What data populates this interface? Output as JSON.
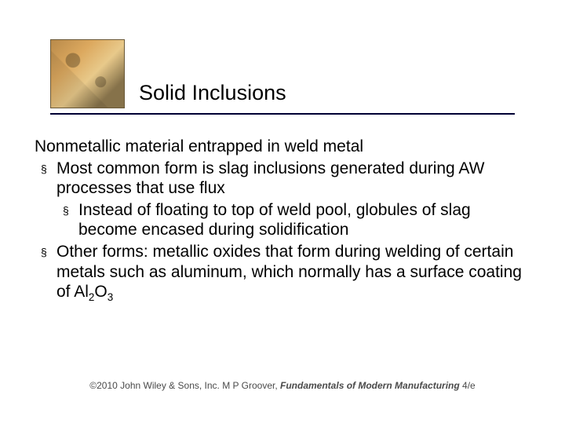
{
  "title": "Solid Inclusions",
  "intro": "Nonmetallic material entrapped in weld metal",
  "bullets": [
    {
      "level": 1,
      "text": "Most common form is slag inclusions generated during AW processes that use flux"
    },
    {
      "level": 2,
      "text": "Instead of floating to top of weld pool, globules of slag become encased during solidification"
    },
    {
      "level": 1,
      "text_pre": "Other forms: metallic oxides that form during welding of certain metals such as aluminum, which normally has a surface coating of Al",
      "sub": "2",
      "text_mid": "O",
      "sub2": "3"
    }
  ],
  "bullet_marker": "§",
  "footer": {
    "copyright": "©2010 John Wiley & Sons, Inc.  M P Groover, ",
    "book": "Fundamentals of Modern Manufacturing",
    "edition": " 4/e"
  },
  "colors": {
    "rule": "#000033",
    "text": "#000000",
    "footer": "#4a4a4a",
    "background": "#ffffff"
  }
}
